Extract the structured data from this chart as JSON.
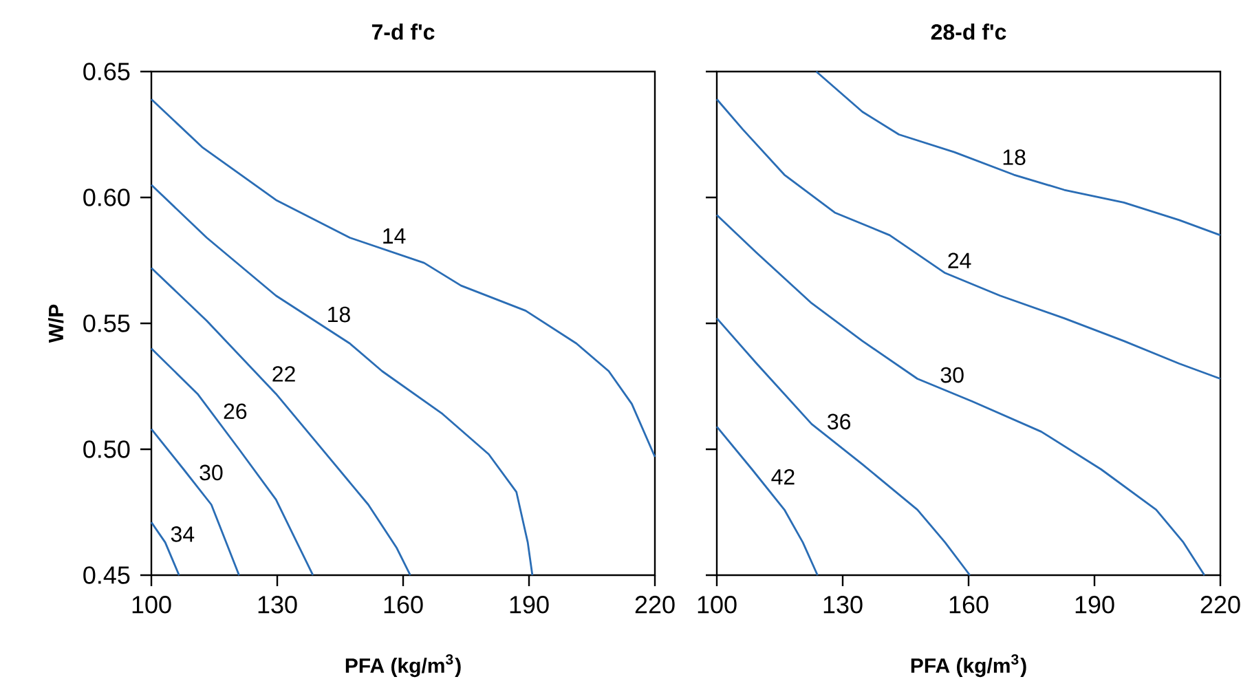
{
  "chart_data": [
    {
      "type": "line",
      "title": "7-d f'c",
      "xlabel": "PFA (kg/m$^{3}$)",
      "ylabel": "W/P",
      "xlim": [
        100,
        220
      ],
      "ylim": [
        0.45,
        0.65
      ],
      "xticks": [
        100,
        130,
        160,
        190,
        220
      ],
      "yticks": [
        {
          "value": 0.45,
          "label": "0.45"
        },
        {
          "value": 0.5,
          "label": "0.50"
        },
        {
          "value": 0.55,
          "label": "0.55"
        },
        {
          "value": 0.6,
          "label": "0.60"
        },
        {
          "value": 0.65,
          "label": "0.65"
        }
      ],
      "marker": "none",
      "series": [
        {
          "name": "14",
          "color": "#2a6db5",
          "x": [
            100,
            112.1,
            129.7,
            147.3,
            165,
            173.8,
            189.2,
            201.3,
            209,
            214.5,
            220
          ],
          "values": [
            0.639,
            0.62,
            0.599,
            0.584,
            0.574,
            0.565,
            0.555,
            0.542,
            0.531,
            0.518,
            0.497
          ]
        },
        {
          "name": "18",
          "color": "#2a6db5",
          "x": [
            100,
            113.2,
            129.7,
            147.3,
            155,
            169.4,
            180.4,
            187,
            189.7,
            190.8
          ],
          "values": [
            0.605,
            0.584,
            0.561,
            0.542,
            0.531,
            0.514,
            0.498,
            0.483,
            0.463,
            0.45
          ]
        },
        {
          "name": "22",
          "color": "#2a6db5",
          "x": [
            100,
            113.2,
            129.7,
            140.7,
            151.7,
            158.4,
            161.7
          ],
          "values": [
            0.572,
            0.551,
            0.522,
            0.5,
            0.478,
            0.461,
            0.45
          ]
        },
        {
          "name": "26",
          "color": "#2a6db5",
          "x": [
            100,
            111,
            120.9,
            129.7,
            134.1,
            138.5
          ],
          "values": [
            0.54,
            0.522,
            0.5,
            0.48,
            0.465,
            0.45
          ]
        },
        {
          "name": "30",
          "color": "#2a6db5",
          "x": [
            100,
            107.7,
            114.3,
            117.6,
            120.9
          ],
          "values": [
            0.508,
            0.492,
            0.478,
            0.464,
            0.45
          ]
        },
        {
          "name": "34",
          "color": "#2a6db5",
          "x": [
            100,
            103.3,
            106.6
          ],
          "values": [
            0.471,
            0.463,
            0.45
          ]
        }
      ]
    },
    {
      "type": "line",
      "title": "28-d f'c",
      "xlabel": "PFA (kg/m$^{3}$)",
      "xlim": [
        100,
        220
      ],
      "ylim": [
        0.45,
        0.65
      ],
      "xticks": [
        100,
        130,
        160,
        190,
        220
      ],
      "yticks": [
        {
          "value": 0.45,
          "label": null
        },
        {
          "value": 0.5,
          "label": null
        },
        {
          "value": 0.55,
          "label": null
        },
        {
          "value": 0.6,
          "label": null
        },
        {
          "value": 0.65,
          "label": null
        }
      ],
      "tick_labels": "x",
      "marker": "none",
      "series": [
        {
          "name": "18",
          "color": "#2a6db5",
          "x": [
            123.7,
            134.7,
            143.4,
            156.6,
            170.8,
            182.8,
            197,
            210.2,
            220
          ],
          "values": [
            0.65,
            0.634,
            0.625,
            0.618,
            0.609,
            0.603,
            0.598,
            0.591,
            0.585
          ]
        },
        {
          "name": "24",
          "color": "#2a6db5",
          "x": [
            100,
            106.2,
            116.1,
            128.1,
            141.2,
            154.4,
            167.5,
            182.8,
            197,
            210.2,
            220
          ],
          "values": [
            0.639,
            0.627,
            0.609,
            0.594,
            0.585,
            0.57,
            0.561,
            0.552,
            0.543,
            0.534,
            0.528
          ]
        },
        {
          "name": "30",
          "color": "#2a6db5",
          "x": [
            100,
            109.5,
            122.6,
            134.7,
            147.8,
            160.9,
            177.3,
            191.6,
            204.7,
            211.2,
            216.2
          ],
          "values": [
            0.593,
            0.578,
            0.558,
            0.543,
            0.528,
            0.519,
            0.507,
            0.492,
            0.476,
            0.463,
            0.45
          ]
        },
        {
          "name": "36",
          "color": "#2a6db5",
          "x": [
            100,
            109.5,
            122.6,
            134.7,
            147.8,
            154.4,
            160.3
          ],
          "values": [
            0.552,
            0.534,
            0.51,
            0.494,
            0.476,
            0.463,
            0.45
          ]
        },
        {
          "name": "42",
          "color": "#2a6db5",
          "x": [
            100,
            108.4,
            116.1,
            120.5,
            124
          ],
          "values": [
            0.509,
            0.492,
            0.476,
            0.463,
            0.45
          ]
        }
      ]
    }
  ]
}
